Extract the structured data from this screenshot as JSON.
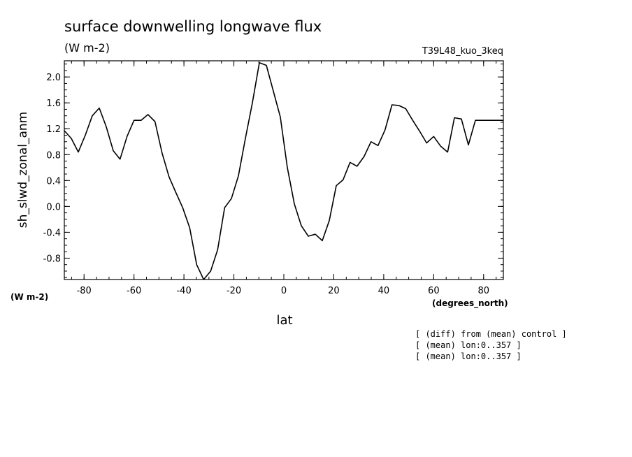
{
  "chart_data": {
    "type": "line",
    "title": "surface downwelling longwave flux",
    "units": "(W m-2)",
    "run_name": "T39L48_kuo_3keq",
    "ylabel": "sh_slwd_zonal_anm",
    "y_units_label": "(W m-2)",
    "xlabel": "lat",
    "x_units_label": "(degrees_north)",
    "xlim": [
      -87.9,
      87.9
    ],
    "ylim": [
      -1.13,
      2.25
    ],
    "xticks": [
      -80,
      -60,
      -40,
      -20,
      0,
      20,
      40,
      60,
      80
    ],
    "xtick_labels": [
      "-80",
      "-60",
      "-40",
      "-20",
      "0",
      "20",
      "40",
      "60",
      "80"
    ],
    "yticks": [
      -0.8,
      -0.4,
      0.0,
      0.4,
      0.8,
      1.2,
      1.6,
      2.0
    ],
    "ytick_labels": [
      "-0.8",
      "-0.4",
      "0.0",
      "0.4",
      "0.8",
      "1.2",
      "1.6",
      "2.0"
    ],
    "grid": false,
    "series": [
      {
        "x": [
          -87.9,
          -85.1,
          -82.3,
          -79.5,
          -76.7,
          -73.9,
          -71.1,
          -68.3,
          -65.6,
          -62.8,
          -60.0,
          -57.2,
          -54.4,
          -51.6,
          -48.8,
          -46.0,
          -43.3,
          -40.5,
          -37.7,
          -34.9,
          -32.1,
          -29.3,
          -26.5,
          -23.7,
          -21.0,
          -18.2,
          -15.4,
          -12.6,
          -9.8,
          -7.0,
          -4.2,
          -1.4,
          1.4,
          4.2,
          7.0,
          9.8,
          12.6,
          15.4,
          18.2,
          21.0,
          23.7,
          26.5,
          29.3,
          32.1,
          34.9,
          37.7,
          40.5,
          43.3,
          46.0,
          48.8,
          51.6,
          54.4,
          57.2,
          60.0,
          62.8,
          65.6,
          68.3,
          71.1,
          73.9,
          76.7,
          79.5,
          82.3,
          85.1,
          87.9
        ],
        "y": [
          1.17,
          1.05,
          0.84,
          1.1,
          1.4,
          1.52,
          1.23,
          0.86,
          0.73,
          1.08,
          1.33,
          1.33,
          1.42,
          1.31,
          0.83,
          0.46,
          0.22,
          -0.02,
          -0.33,
          -0.9,
          -1.13,
          -1.0,
          -0.67,
          -0.02,
          0.12,
          0.47,
          1.05,
          1.6,
          2.22,
          2.18,
          1.78,
          1.38,
          0.6,
          0.04,
          -0.3,
          -0.46,
          -0.43,
          -0.53,
          -0.22,
          0.32,
          0.41,
          0.68,
          0.62,
          0.77,
          1.0,
          0.94,
          1.18,
          1.57,
          1.56,
          1.51,
          1.33,
          1.16,
          0.98,
          1.08,
          0.93,
          0.84,
          1.37,
          1.35,
          0.95,
          1.33,
          1.33,
          1.33,
          1.33,
          1.33
        ]
      }
    ]
  },
  "notes": [
    "[ (diff) from (mean) control ]",
    "[ (mean) lon:0..357 ]",
    "[ (mean) lon:0..357 ]"
  ]
}
